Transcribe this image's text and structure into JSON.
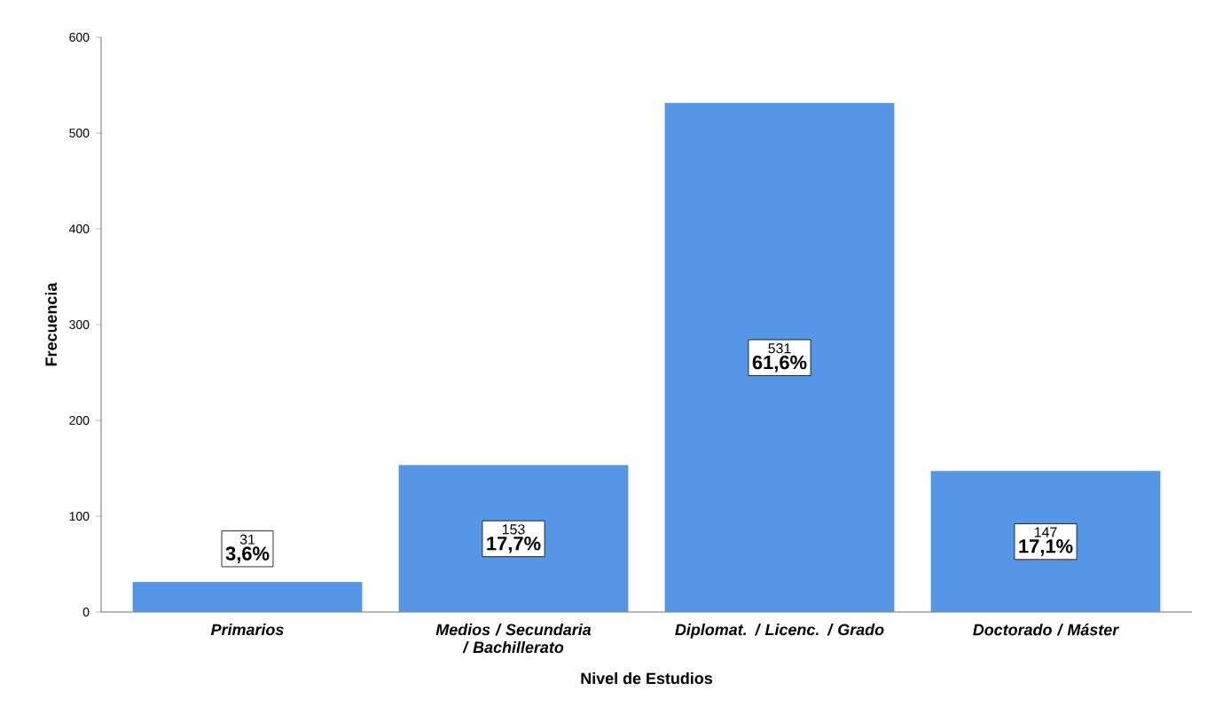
{
  "chart_data": {
    "type": "bar",
    "xlabel": "Nivel de Estudios",
    "ylabel": "Frecuencia",
    "categories": [
      "Primarios",
      "Medios / Secundaria / Bachillerato",
      "Diplomat. / Licenc. / Grado",
      "Doctorado / Máster"
    ],
    "values": [
      31,
      153,
      531,
      147
    ],
    "color": "#5596e6",
    "value_labels": [
      "31",
      "153",
      "531",
      "147"
    ],
    "annotations": [
      "3,6%",
      "17,7%",
      "61,6%",
      "17,1%"
    ],
    "ylim": [
      0,
      600
    ],
    "yticks": [
      0,
      100,
      200,
      300,
      400,
      500,
      600
    ],
    "grid": false
  }
}
